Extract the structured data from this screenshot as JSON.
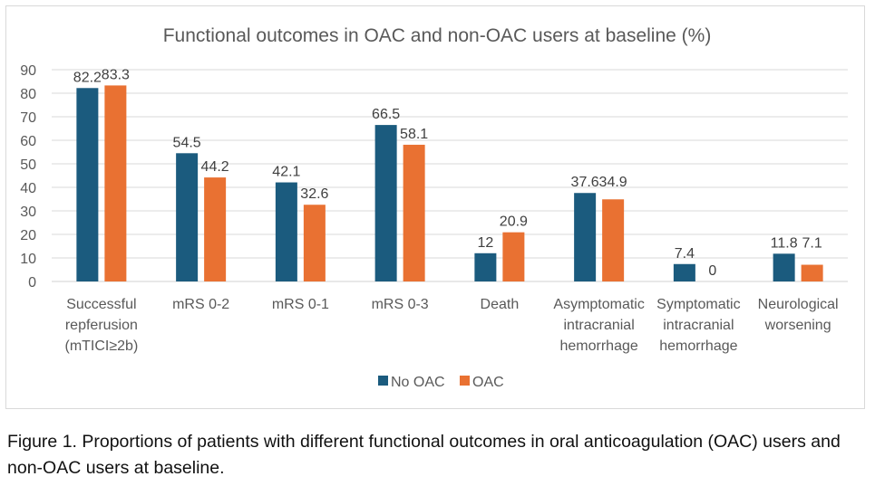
{
  "chart_data": {
    "type": "bar",
    "title": "Functional outcomes in OAC and non-OAC users at baseline (%)",
    "xlabel": "",
    "ylabel": "",
    "ylim": [
      0,
      90
    ],
    "yticks": [
      0,
      10,
      20,
      30,
      40,
      50,
      60,
      70,
      80,
      90
    ],
    "grid": true,
    "legend_position": "bottom",
    "categories": [
      [
        "Successful",
        "repferusion",
        "(mTICI≥2b)"
      ],
      [
        "mRS 0-2"
      ],
      [
        "mRS 0-1"
      ],
      [
        "mRS 0-3"
      ],
      [
        "Death"
      ],
      [
        "Asymptomatic",
        "intracranial",
        "hemorrhage"
      ],
      [
        "Symptomatic",
        "intracranial",
        "hemorrhage"
      ],
      [
        "Neurological",
        "worsening"
      ]
    ],
    "series": [
      {
        "name": "No OAC",
        "color": "#1b5b7e",
        "values": [
          82.2,
          54.5,
          42.1,
          66.5,
          12,
          37.6,
          7.4,
          11.8
        ]
      },
      {
        "name": "OAC",
        "color": "#e97132",
        "values": [
          83.3,
          44.2,
          32.6,
          58.1,
          20.9,
          34.9,
          0,
          7.1
        ]
      }
    ]
  },
  "caption": "Figure 1. Proportions of patients with different functional outcomes in oral anticoagulation (OAC) users and non-OAC users at baseline."
}
